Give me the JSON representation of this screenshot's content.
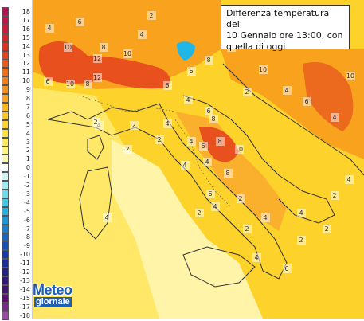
{
  "legend": {
    "items": [
      {
        "label": "18",
        "color": "#b0134f"
      },
      {
        "label": "17",
        "color": "#c0154a"
      },
      {
        "label": "16",
        "color": "#cc1a3a"
      },
      {
        "label": "15",
        "color": "#d8232a"
      },
      {
        "label": "14",
        "color": "#e03020"
      },
      {
        "label": "13",
        "color": "#e8421a"
      },
      {
        "label": "12",
        "color": "#ef5a18"
      },
      {
        "label": "11",
        "color": "#f26d18"
      },
      {
        "label": "10",
        "color": "#f58019"
      },
      {
        "label": "9",
        "color": "#f8921a"
      },
      {
        "label": "8",
        "color": "#faa51c"
      },
      {
        "label": "7",
        "color": "#fcb61f"
      },
      {
        "label": "6",
        "color": "#fdc523"
      },
      {
        "label": "5",
        "color": "#fed42a"
      },
      {
        "label": "4",
        "color": "#ffe23a"
      },
      {
        "label": "3",
        "color": "#ffec5c"
      },
      {
        "label": "2",
        "color": "#fff382"
      },
      {
        "label": "1",
        "color": "#fff8b0"
      },
      {
        "label": "0",
        "color": "#ffffff"
      },
      {
        "label": "-1",
        "color": "#cdf3f6"
      },
      {
        "label": "-2",
        "color": "#9feaf0"
      },
      {
        "label": "-3",
        "color": "#6adcec"
      },
      {
        "label": "-4",
        "color": "#3ccbe8"
      },
      {
        "label": "-5",
        "color": "#22b2e2"
      },
      {
        "label": "-6",
        "color": "#1c98d8"
      },
      {
        "label": "-7",
        "color": "#1a7fcd"
      },
      {
        "label": "-8",
        "color": "#1866c2"
      },
      {
        "label": "-9",
        "color": "#1650b6"
      },
      {
        "label": "-10",
        "color": "#143ca8"
      },
      {
        "label": "-11",
        "color": "#1a2d98"
      },
      {
        "label": "-12",
        "color": "#241f8a"
      },
      {
        "label": "-13",
        "color": "#33177e"
      },
      {
        "label": "-14",
        "color": "#441276"
      },
      {
        "label": "-15",
        "color": "#570f70"
      },
      {
        "label": "-17",
        "color": "#7a2a8a"
      },
      {
        "label": "-18",
        "color": "#9a4aa6"
      }
    ]
  },
  "info": {
    "line1": "Differenza temperatura del",
    "line2": "10 Gennaio ore 13:00, con",
    "line3": "quella di oggi"
  },
  "logo": {
    "main": "Meteo",
    "sub": "giornale"
  },
  "map_labels": [
    "4",
    "6",
    "8",
    "10",
    "12",
    "10",
    "12",
    "8",
    "10",
    "6",
    "4",
    "2",
    "6",
    "8",
    "4",
    "10",
    "8",
    "6",
    "10",
    "6",
    "4",
    "4",
    "2",
    "4",
    "6",
    "8",
    "4",
    "2",
    "4",
    "6",
    "8",
    "10",
    "4",
    "2",
    "6",
    "4",
    "2",
    "4",
    "2",
    "4",
    "6",
    "4",
    "2",
    "2",
    "4",
    "2",
    "4",
    "2",
    "2",
    "4",
    "6",
    "8",
    "4",
    "2"
  ],
  "colors": {
    "sea_warm": "#ffd21f",
    "land_yellow": "#ffe45a",
    "orange": "#f7a020",
    "red": "#e23d20",
    "blue": "#1fb6e8"
  }
}
